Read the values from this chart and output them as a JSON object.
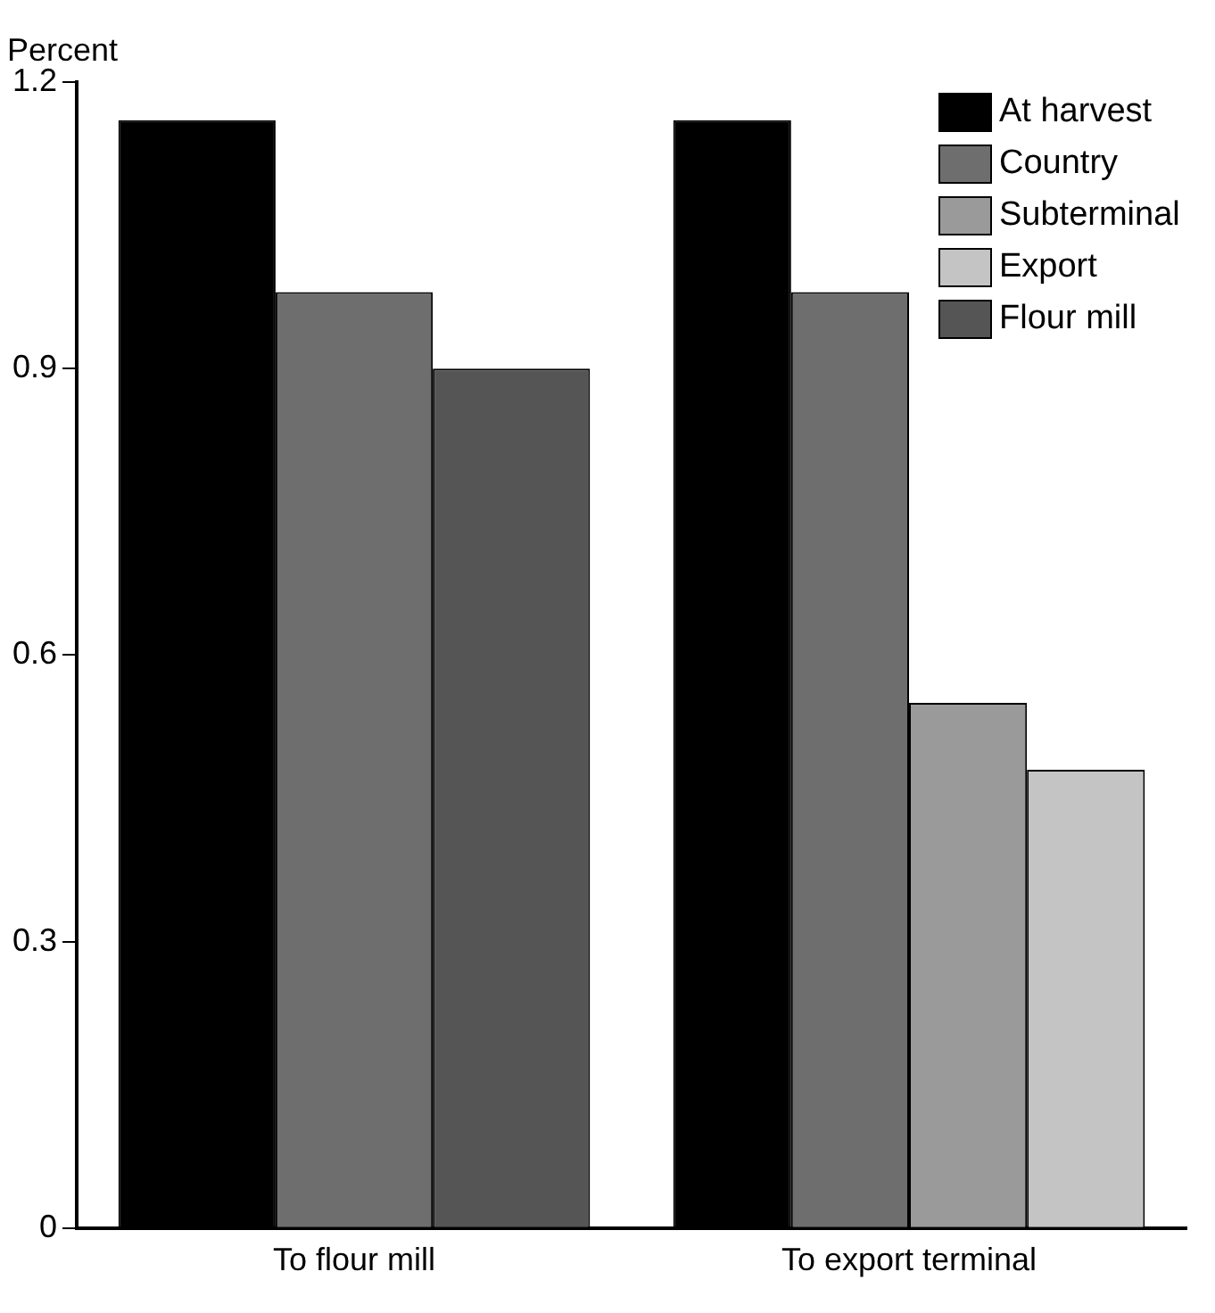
{
  "chart_data": {
    "type": "bar",
    "ylabel": "Percent",
    "categories": [
      "To flour mill",
      "To export terminal"
    ],
    "series": [
      {
        "name": "At harvest",
        "color": "#000000",
        "values": [
          1.16,
          1.16
        ]
      },
      {
        "name": "Country",
        "color": "#6e6e6e",
        "values": [
          0.98,
          0.98
        ]
      },
      {
        "name": "Subterminal",
        "color": "#9a9a9a",
        "values": [
          null,
          0.55
        ]
      },
      {
        "name": "Export",
        "color": "#c4c4c4",
        "values": [
          null,
          0.48
        ]
      },
      {
        "name": "Flour mill",
        "color": "#555555",
        "values": [
          0.9,
          null
        ]
      }
    ],
    "ylim": [
      0,
      1.2
    ],
    "yticks": [
      0,
      0.3,
      0.6,
      0.9,
      1.2
    ],
    "grid": false,
    "legend": "top right"
  }
}
